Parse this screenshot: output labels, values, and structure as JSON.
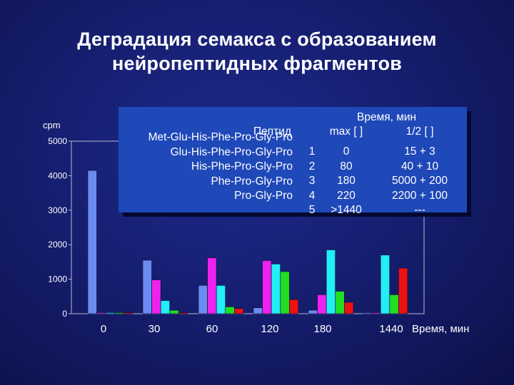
{
  "title_line1": "Деградация семакса с образованием",
  "title_line2": "нейропептидных фрагментов",
  "chart_data": {
    "type": "bar",
    "ylabel": "cpm",
    "xlabel": "Время, мин",
    "ylim": [
      0,
      5000
    ],
    "yticks": [
      0,
      1000,
      2000,
      3000,
      4000,
      5000
    ],
    "categories": [
      "0",
      "30",
      "60",
      "120",
      "180",
      "1440"
    ],
    "series": [
      {
        "name": "1",
        "color": "#6a8cf0",
        "values": [
          4150,
          1550,
          820,
          170,
          100,
          0
        ]
      },
      {
        "name": "2",
        "color": "#ee22ee",
        "values": [
          0,
          980,
          1620,
          1540,
          550,
          0
        ]
      },
      {
        "name": "3",
        "color": "#22eef6",
        "values": [
          0,
          380,
          820,
          1440,
          1850,
          1700
        ]
      },
      {
        "name": "4",
        "color": "#22dd22",
        "values": [
          0,
          100,
          200,
          1220,
          650,
          550
        ]
      },
      {
        "name": "5",
        "color": "#ee1111",
        "values": [
          0,
          0,
          150,
          410,
          330,
          1320
        ]
      }
    ]
  },
  "table": {
    "time_header": "Время, мин",
    "peptide_header": "Пептид",
    "max_header": "max [ ]",
    "half_header": "1/2 [ ]",
    "rows": [
      {
        "peptide": "Met-Glu-His-Phe-Pro-Gly-Pro",
        "num": "1",
        "max": "0",
        "half": "15 + 3"
      },
      {
        "peptide": "Glu-His-Phe-Pro-Gly-Pro",
        "num": "2",
        "max": "80",
        "half": "40 + 10"
      },
      {
        "peptide": "His-Phe-Pro-Gly-Pro",
        "num": "3",
        "max": "180",
        "half": "5000 + 200"
      },
      {
        "peptide": "Phe-Pro-Gly-Pro",
        "num": "4",
        "max": "220",
        "half": "2200 + 100"
      },
      {
        "peptide": "Pro-Gly-Pro",
        "num": "5",
        "max": ">1440",
        "half": "---"
      }
    ]
  }
}
